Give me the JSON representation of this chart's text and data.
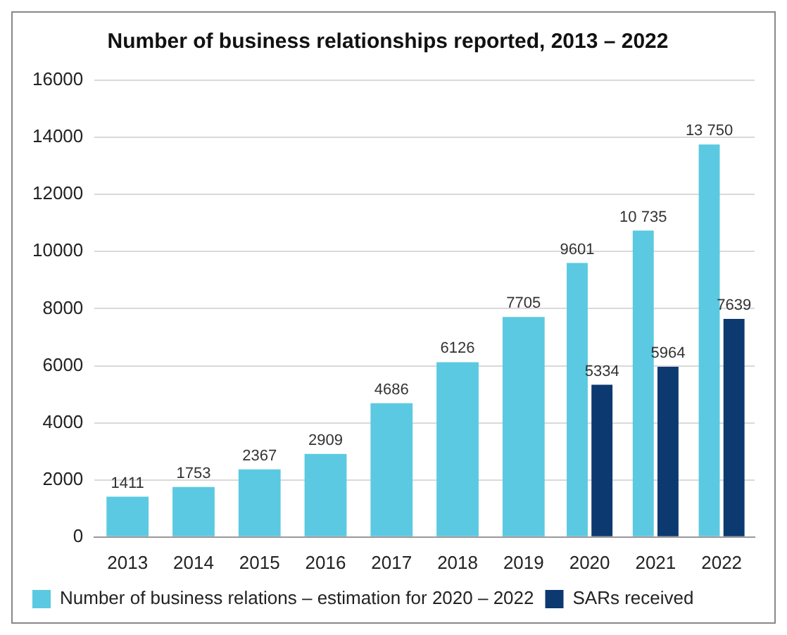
{
  "chart_data": {
    "type": "bar",
    "title": "Number of business relationships reported, 2013 – 2022",
    "categories": [
      "2013",
      "2014",
      "2015",
      "2016",
      "2017",
      "2018",
      "2019",
      "2020",
      "2021",
      "2022"
    ],
    "series": [
      {
        "name": "Number of business relations – estimation for 2020 – 2022",
        "color": "#5bc9e1",
        "values": [
          1411,
          1753,
          2367,
          2909,
          4686,
          6126,
          7705,
          9601,
          10735,
          13750
        ],
        "value_labels": [
          "1411",
          "1753",
          "2367",
          "2909",
          "4686",
          "6126",
          "7705",
          "9601",
          "10 735",
          "13 750"
        ]
      },
      {
        "name": "SARs received",
        "color": "#0c3970",
        "values": [
          null,
          null,
          null,
          null,
          null,
          null,
          null,
          5334,
          5964,
          7639
        ],
        "value_labels": [
          null,
          null,
          null,
          null,
          null,
          null,
          null,
          "5334",
          "5964",
          "7639"
        ]
      }
    ],
    "ylim": [
      0,
      16000
    ],
    "yticks": [
      0,
      2000,
      4000,
      6000,
      8000,
      10000,
      12000,
      14000,
      16000
    ],
    "grid": "y",
    "legend": "bottom left"
  }
}
